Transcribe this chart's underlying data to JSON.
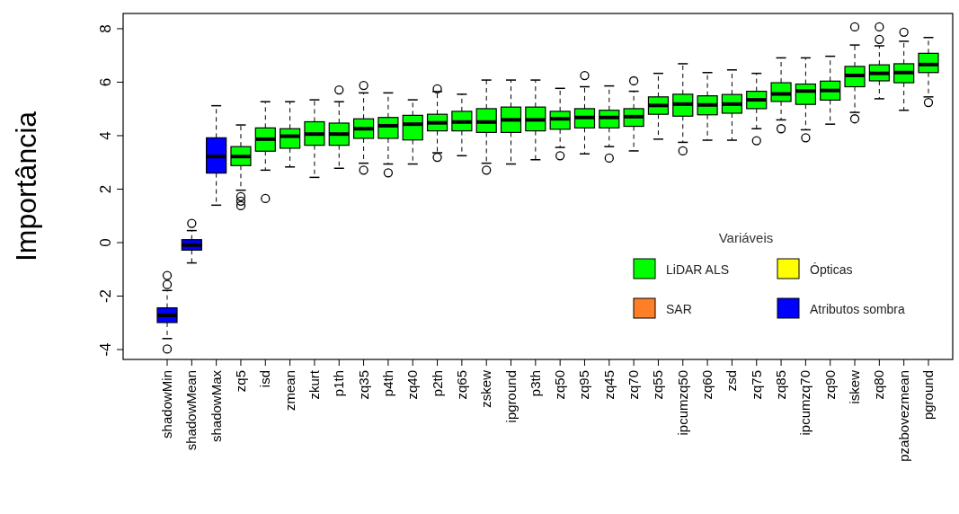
{
  "chart_data": {
    "type": "box",
    "ylabel": "Importância",
    "legend_title": "Variáveis",
    "legend": "right",
    "grid": false,
    "categories": [
      "shadowMin",
      "shadowMean",
      "shadowMax",
      "zq5",
      "isd",
      "zmean",
      "zkurt",
      "p1th",
      "zq35",
      "p4th",
      "zq40",
      "p2th",
      "zq65",
      "zskew",
      "ipground",
      "p3th",
      "zq50",
      "zq95",
      "zq45",
      "zq70",
      "zq55",
      "ipcumzq50",
      "zq60",
      "zsd",
      "zq75",
      "zq85",
      "ipcumzq70",
      "zq90",
      "iskew",
      "zq80",
      "pzabovezmean",
      "pground"
    ],
    "ylim": [
      -4.37,
      8.57
    ],
    "yticks": [
      -4,
      -2,
      0,
      2,
      4,
      6,
      8
    ],
    "series": [
      {
        "name": "LiDAR ALS",
        "color": "#00ff00",
        "boxes": [
          null,
          null,
          null,
          {
            "low": 1.96,
            "q1": 2.88,
            "median": 3.22,
            "q3": 3.59,
            "high": 4.4,
            "outliers": [
              1.72,
              1.55,
              1.38
            ]
          },
          {
            "low": 2.71,
            "q1": 3.42,
            "median": 3.87,
            "q3": 4.29,
            "high": 5.27,
            "outliers": [
              1.65
            ]
          },
          {
            "low": 2.83,
            "q1": 3.53,
            "median": 3.98,
            "q3": 4.26,
            "high": 5.27
          },
          {
            "low": 2.44,
            "q1": 3.64,
            "median": 4.06,
            "q3": 4.52,
            "high": 5.34
          },
          {
            "low": 2.78,
            "q1": 3.64,
            "median": 4.06,
            "q3": 4.47,
            "high": 5.27,
            "outliers": [
              5.71
            ]
          },
          {
            "low": 2.97,
            "q1": 3.9,
            "median": 4.26,
            "q3": 4.63,
            "high": 5.6,
            "outliers": [
              5.88,
              2.71
            ]
          },
          {
            "low": 2.94,
            "q1": 3.9,
            "median": 4.37,
            "q3": 4.68,
            "high": 5.6,
            "outliers": [
              2.61
            ]
          },
          {
            "low": 2.94,
            "q1": 3.84,
            "median": 4.43,
            "q3": 4.76,
            "high": 5.34
          },
          {
            "low": 3.36,
            "q1": 4.18,
            "median": 4.48,
            "q3": 4.8,
            "high": 5.65,
            "outliers": [
              5.75,
              3.19
            ]
          },
          {
            "low": 3.25,
            "q1": 4.18,
            "median": 4.51,
            "q3": 4.91,
            "high": 5.55
          },
          {
            "low": 2.97,
            "q1": 4.12,
            "median": 4.51,
            "q3": 5.01,
            "high": 6.08,
            "outliers": [
              2.71
            ]
          },
          {
            "low": 2.94,
            "q1": 4.12,
            "median": 4.59,
            "q3": 5.07,
            "high": 6.08
          },
          {
            "low": 3.1,
            "q1": 4.18,
            "median": 4.59,
            "q3": 5.07,
            "high": 6.08
          },
          {
            "low": 3.56,
            "q1": 4.24,
            "median": 4.63,
            "q3": 4.91,
            "high": 5.77,
            "outliers": [
              3.25
            ]
          },
          {
            "low": 3.32,
            "q1": 4.29,
            "median": 4.68,
            "q3": 5.01,
            "high": 5.83,
            "outliers": [
              6.25
            ]
          },
          {
            "low": 3.59,
            "q1": 4.29,
            "median": 4.68,
            "q3": 4.95,
            "high": 5.86,
            "outliers": [
              3.16
            ]
          },
          {
            "low": 3.43,
            "q1": 4.35,
            "median": 4.71,
            "q3": 5.01,
            "high": 5.66,
            "outliers": [
              6.05
            ]
          },
          {
            "low": 3.87,
            "q1": 4.8,
            "median": 5.13,
            "q3": 5.45,
            "high": 6.33
          },
          {
            "low": 3.75,
            "q1": 4.73,
            "median": 5.18,
            "q3": 5.55,
            "high": 6.69,
            "outliers": [
              3.43
            ]
          },
          {
            "low": 3.83,
            "q1": 4.78,
            "median": 5.15,
            "q3": 5.49,
            "high": 6.36
          },
          {
            "low": 3.83,
            "q1": 4.84,
            "median": 5.18,
            "q3": 5.54,
            "high": 6.46
          },
          {
            "low": 4.26,
            "q1": 5.01,
            "median": 5.34,
            "q3": 5.66,
            "high": 6.33,
            "outliers": [
              3.81
            ]
          },
          {
            "low": 4.59,
            "q1": 5.28,
            "median": 5.56,
            "q3": 5.98,
            "high": 6.91,
            "outliers": [
              4.26
            ]
          },
          {
            "low": 4.22,
            "q1": 5.17,
            "median": 5.67,
            "q3": 5.93,
            "high": 6.91,
            "outliers": [
              3.92
            ]
          },
          {
            "low": 4.43,
            "q1": 5.33,
            "median": 5.69,
            "q3": 6.04,
            "high": 6.97
          },
          {
            "low": 4.87,
            "q1": 5.83,
            "median": 6.25,
            "q3": 6.59,
            "high": 7.39,
            "outliers": [
              8.07,
              4.63
            ]
          },
          {
            "low": 5.38,
            "q1": 6.05,
            "median": 6.33,
            "q3": 6.65,
            "high": 7.36,
            "outliers": [
              8.07,
              7.6
            ]
          },
          {
            "low": 4.95,
            "q1": 5.98,
            "median": 6.36,
            "q3": 6.69,
            "high": 7.53,
            "outliers": [
              7.87
            ]
          },
          {
            "low": 5.45,
            "q1": 6.36,
            "median": 6.66,
            "q3": 7.08,
            "high": 7.67,
            "outliers": [
              5.24
            ]
          }
        ]
      },
      {
        "name": "Ópticas",
        "color": "#ffff00",
        "boxes": [
          null,
          null,
          null,
          null,
          null,
          null,
          null,
          null,
          null,
          null,
          null,
          null,
          null,
          null,
          null,
          null,
          null,
          null,
          null,
          null,
          null,
          null,
          null,
          null,
          null,
          null,
          null,
          null,
          null,
          null,
          null,
          null
        ]
      },
      {
        "name": "SAR",
        "color": "#ff7f27",
        "boxes": [
          null,
          null,
          null,
          null,
          null,
          null,
          null,
          null,
          null,
          null,
          null,
          null,
          null,
          null,
          null,
          null,
          null,
          null,
          null,
          null,
          null,
          null,
          null,
          null,
          null,
          null,
          null,
          null,
          null,
          null,
          null,
          null
        ]
      },
      {
        "name": "Atributos sombra",
        "color": "#0000ff",
        "boxes": [
          {
            "low": -3.59,
            "q1": -2.99,
            "median": -2.72,
            "q3": -2.44,
            "high": -1.79,
            "outliers": [
              -1.23,
              -1.57,
              -3.98
            ]
          },
          {
            "low": -0.76,
            "q1": -0.28,
            "median": -0.09,
            "q3": 0.11,
            "high": 0.45,
            "outliers": [
              0.72
            ]
          },
          {
            "low": 1.4,
            "q1": 2.6,
            "median": 3.22,
            "q3": 3.92,
            "high": 5.12
          },
          null,
          null,
          null,
          null,
          null,
          null,
          null,
          null,
          null,
          null,
          null,
          null,
          null,
          null,
          null,
          null,
          null,
          null,
          null,
          null,
          null,
          null,
          null,
          null,
          null,
          null,
          null,
          null,
          null
        ]
      }
    ]
  }
}
